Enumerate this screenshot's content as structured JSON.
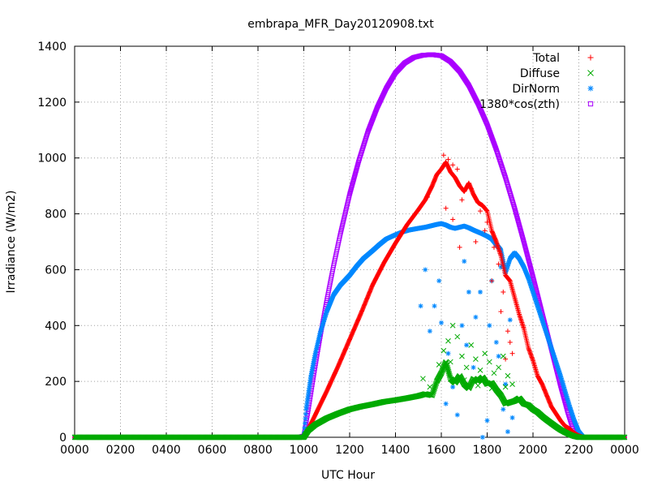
{
  "chart_data": {
    "type": "scatter",
    "title": "embrapa_MFR_Day20120908.txt",
    "xlabel": "UTC Hour",
    "ylabel": "Irradiance (W/m2)",
    "xlim": [
      0,
      24
    ],
    "ylim": [
      0,
      1400
    ],
    "grid": true,
    "legend_position": "top-right",
    "x_ticks": [
      {
        "value": 0,
        "label": "0000"
      },
      {
        "value": 2,
        "label": "0200"
      },
      {
        "value": 4,
        "label": "0400"
      },
      {
        "value": 6,
        "label": "0600"
      },
      {
        "value": 8,
        "label": "0800"
      },
      {
        "value": 10,
        "label": "1000"
      },
      {
        "value": 12,
        "label": "1200"
      },
      {
        "value": 14,
        "label": "1400"
      },
      {
        "value": 16,
        "label": "1600"
      },
      {
        "value": 18,
        "label": "1800"
      },
      {
        "value": 20,
        "label": "2000"
      },
      {
        "value": 22,
        "label": "2200"
      },
      {
        "value": 24,
        "label": "0000"
      }
    ],
    "y_ticks": [
      0,
      200,
      400,
      600,
      800,
      1000,
      1200,
      1400
    ],
    "series": [
      {
        "name": "Total",
        "marker": "+",
        "color": "#ff0000",
        "x": [
          0,
          2,
          4,
          6,
          8,
          9.8,
          10,
          10.2,
          10.5,
          11,
          11.5,
          12,
          12.5,
          13,
          13.5,
          14,
          14.5,
          15,
          15.3,
          15.6,
          15.8,
          16,
          16.2,
          16.4,
          16.6,
          16.8,
          17,
          17.2,
          17.4,
          17.6,
          17.8,
          18,
          18.2,
          18.4,
          18.6,
          18.8,
          19,
          19.2,
          19.4,
          19.6,
          19.8,
          20,
          20.2,
          20.4,
          20.6,
          20.8,
          21,
          21.2,
          21.4,
          21.6,
          21.8,
          22,
          22.2,
          22.4,
          23,
          24
        ],
        "y": [
          0,
          0,
          0,
          0,
          0,
          0,
          0,
          30,
          80,
          165,
          255,
          350,
          445,
          545,
          625,
          695,
          760,
          815,
          850,
          900,
          940,
          960,
          985,
          950,
          930,
          900,
          880,
          910,
          870,
          840,
          830,
          810,
          740,
          700,
          650,
          580,
          560,
          500,
          440,
          390,
          320,
          275,
          220,
          190,
          150,
          110,
          85,
          60,
          40,
          30,
          15,
          5,
          0,
          0,
          0,
          0
        ]
      },
      {
        "name": "Diffuse",
        "marker": "x",
        "color": "#00aa00",
        "x": [
          0,
          2,
          4,
          6,
          8,
          9.8,
          10,
          10.2,
          10.5,
          11,
          11.5,
          12,
          12.5,
          13,
          13.5,
          14,
          14.5,
          15,
          15.3,
          15.6,
          15.8,
          16,
          16.2,
          16.4,
          16.6,
          16.8,
          17,
          17.2,
          17.4,
          17.6,
          17.8,
          18,
          18.2,
          18.4,
          18.6,
          18.8,
          19,
          19.2,
          19.4,
          19.6,
          19.8,
          20,
          20.2,
          20.4,
          20.6,
          20.8,
          21,
          21.2,
          21.4,
          21.6,
          21.8,
          22,
          22.2,
          22.4,
          23,
          24
        ],
        "y": [
          0,
          0,
          0,
          0,
          0,
          0,
          0,
          25,
          45,
          68,
          85,
          100,
          110,
          118,
          127,
          133,
          140,
          148,
          155,
          150,
          200,
          230,
          270,
          210,
          195,
          220,
          190,
          175,
          210,
          200,
          215,
          190,
          195,
          170,
          150,
          120,
          125,
          130,
          140,
          120,
          115,
          100,
          90,
          75,
          62,
          50,
          38,
          27,
          18,
          10,
          4,
          0,
          0,
          0,
          0,
          0
        ]
      },
      {
        "name": "DirNorm",
        "marker": "*",
        "color": "#0088ff",
        "x": [
          0,
          2,
          4,
          6,
          8,
          9.8,
          10,
          10.1,
          10.3,
          10.5,
          10.7,
          11,
          11.3,
          11.6,
          12,
          12.3,
          12.6,
          13,
          13.3,
          13.6,
          14,
          14.3,
          14.6,
          15,
          15.3,
          15.6,
          15.8,
          16,
          16.2,
          16.4,
          16.6,
          16.8,
          17,
          17.2,
          17.4,
          17.6,
          17.8,
          18,
          18.2,
          18.4,
          18.6,
          18.8,
          19,
          19.2,
          19.4,
          19.6,
          19.8,
          20,
          20.2,
          20.4,
          20.6,
          20.8,
          21,
          21.2,
          21.4,
          21.6,
          21.8,
          22,
          22.2,
          22.4,
          23,
          24
        ],
        "y": [
          0,
          0,
          0,
          0,
          0,
          0,
          0,
          100,
          215,
          300,
          370,
          450,
          510,
          545,
          580,
          612,
          640,
          668,
          690,
          710,
          725,
          735,
          742,
          748,
          752,
          758,
          762,
          765,
          760,
          752,
          748,
          752,
          756,
          750,
          742,
          735,
          728,
          720,
          710,
          690,
          670,
          590,
          640,
          660,
          640,
          610,
          570,
          520,
          470,
          420,
          370,
          320,
          270,
          220,
          165,
          110,
          60,
          20,
          0,
          0,
          0,
          0
        ]
      },
      {
        "name": "1380*cos(zth)",
        "marker": "square",
        "color": "#aa00ff",
        "x": [
          0,
          2,
          4,
          6,
          8,
          9.8,
          10,
          10.2,
          10.4,
          10.6,
          10.8,
          11,
          11.3,
          11.6,
          12,
          12.4,
          12.8,
          13.2,
          13.6,
          14,
          14.4,
          14.8,
          15.2,
          15.6,
          16,
          16.4,
          16.8,
          17.2,
          17.6,
          18,
          18.4,
          18.8,
          19.2,
          19.6,
          20,
          20.4,
          20.8,
          21.2,
          21.5,
          21.8,
          22,
          22.2,
          22.4,
          22.6,
          23,
          24
        ],
        "y": [
          0,
          0,
          0,
          0,
          0,
          0,
          5,
          100,
          205,
          305,
          400,
          490,
          615,
          730,
          870,
          990,
          1095,
          1180,
          1250,
          1305,
          1340,
          1360,
          1368,
          1370,
          1366,
          1345,
          1310,
          1260,
          1195,
          1120,
          1030,
          930,
          820,
          700,
          575,
          445,
          315,
          185,
          95,
          15,
          0,
          0,
          0,
          0,
          0,
          0
        ]
      }
    ],
    "scatter_points": {
      "Total": [
        [
          15.4,
          860
        ],
        [
          15.7,
          920
        ],
        [
          16.1,
          1010
        ],
        [
          16.3,
          995
        ],
        [
          16.5,
          975
        ],
        [
          16.7,
          960
        ],
        [
          16.2,
          820
        ],
        [
          16.5,
          780
        ],
        [
          16.9,
          850
        ],
        [
          17.3,
          890
        ],
        [
          17.7,
          810
        ],
        [
          18.0,
          770
        ],
        [
          18.3,
          680
        ],
        [
          18.5,
          620
        ],
        [
          18.7,
          520
        ],
        [
          18.9,
          380
        ],
        [
          18.8,
          280
        ],
        [
          19.0,
          340
        ],
        [
          18.6,
          450
        ],
        [
          17.9,
          740
        ],
        [
          17.5,
          700
        ],
        [
          16.8,
          680
        ],
        [
          18.2,
          560
        ],
        [
          19.1,
          300
        ]
      ],
      "Diffuse": [
        [
          15.2,
          210
        ],
        [
          15.5,
          180
        ],
        [
          15.9,
          260
        ],
        [
          16.1,
          310
        ],
        [
          16.3,
          345
        ],
        [
          16.5,
          400
        ],
        [
          16.7,
          360
        ],
        [
          16.9,
          290
        ],
        [
          17.1,
          250
        ],
        [
          17.3,
          330
        ],
        [
          17.5,
          280
        ],
        [
          17.7,
          240
        ],
        [
          17.9,
          300
        ],
        [
          18.1,
          270
        ],
        [
          18.3,
          230
        ],
        [
          18.5,
          250
        ],
        [
          18.7,
          290
        ],
        [
          18.9,
          220
        ],
        [
          19.1,
          190
        ],
        [
          16.0,
          230
        ],
        [
          16.4,
          270
        ],
        [
          17.0,
          205
        ],
        [
          17.6,
          185
        ],
        [
          18.2,
          175
        ],
        [
          18.8,
          180
        ]
      ],
      "DirNorm": [
        [
          15.3,
          600
        ],
        [
          15.5,
          380
        ],
        [
          15.7,
          470
        ],
        [
          15.9,
          560
        ],
        [
          16.0,
          410
        ],
        [
          16.2,
          120
        ],
        [
          16.3,
          300
        ],
        [
          16.5,
          180
        ],
        [
          16.7,
          80
        ],
        [
          16.9,
          400
        ],
        [
          17.0,
          630
        ],
        [
          17.2,
          520
        ],
        [
          17.4,
          250
        ],
        [
          17.5,
          430
        ],
        [
          17.7,
          520
        ],
        [
          17.8,
          0
        ],
        [
          17.9,
          200
        ],
        [
          18.0,
          60
        ],
        [
          18.1,
          400
        ],
        [
          18.2,
          560
        ],
        [
          18.4,
          340
        ],
        [
          18.5,
          290
        ],
        [
          18.6,
          610
        ],
        [
          18.7,
          100
        ],
        [
          18.8,
          190
        ],
        [
          18.9,
          20
        ],
        [
          19.0,
          420
        ],
        [
          19.1,
          70
        ],
        [
          15.1,
          470
        ],
        [
          17.1,
          330
        ]
      ]
    }
  }
}
